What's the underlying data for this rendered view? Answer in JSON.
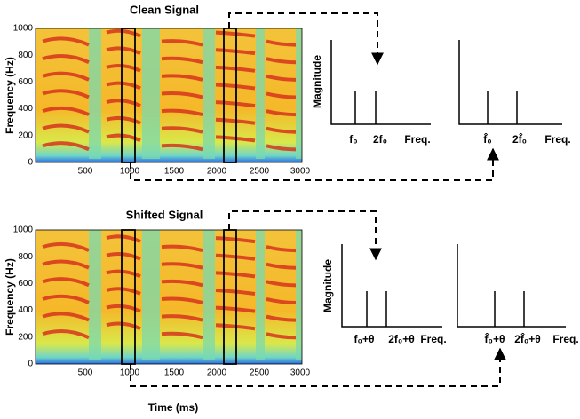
{
  "x_axis_label": "Time (ms)",
  "panels": [
    {
      "title": "Clean Signal",
      "y_label": "Frequency (Hz)",
      "y_ticks": [
        "1000",
        "800",
        "600",
        "400",
        "200",
        "0"
      ],
      "x_ticks": [
        "500",
        "1000",
        "1500",
        "2000",
        "2500",
        "3000"
      ],
      "plots": [
        {
          "y_label": "Magnitude",
          "x_label": "Freq.",
          "peaks": [
            "f₀",
            "2f₀"
          ]
        },
        {
          "x_label": "Freq.",
          "peaks": [
            "f̂₀",
            "2f̂₀"
          ]
        }
      ]
    },
    {
      "title": "Shifted Signal",
      "y_label": "Frequency (Hz)",
      "y_ticks": [
        "1000",
        "800",
        "600",
        "400",
        "200",
        "0"
      ],
      "x_ticks": [
        "500",
        "1000",
        "1500",
        "2000",
        "2500",
        "3000"
      ],
      "plots": [
        {
          "y_label": "Magnitude",
          "x_label": "Freq.",
          "peaks": [
            "f₀+θ",
            "2f₀+θ"
          ]
        },
        {
          "x_label": "Freq.",
          "peaks": [
            "f̂₀+θ",
            "2f̂₀+θ"
          ]
        }
      ]
    }
  ]
}
